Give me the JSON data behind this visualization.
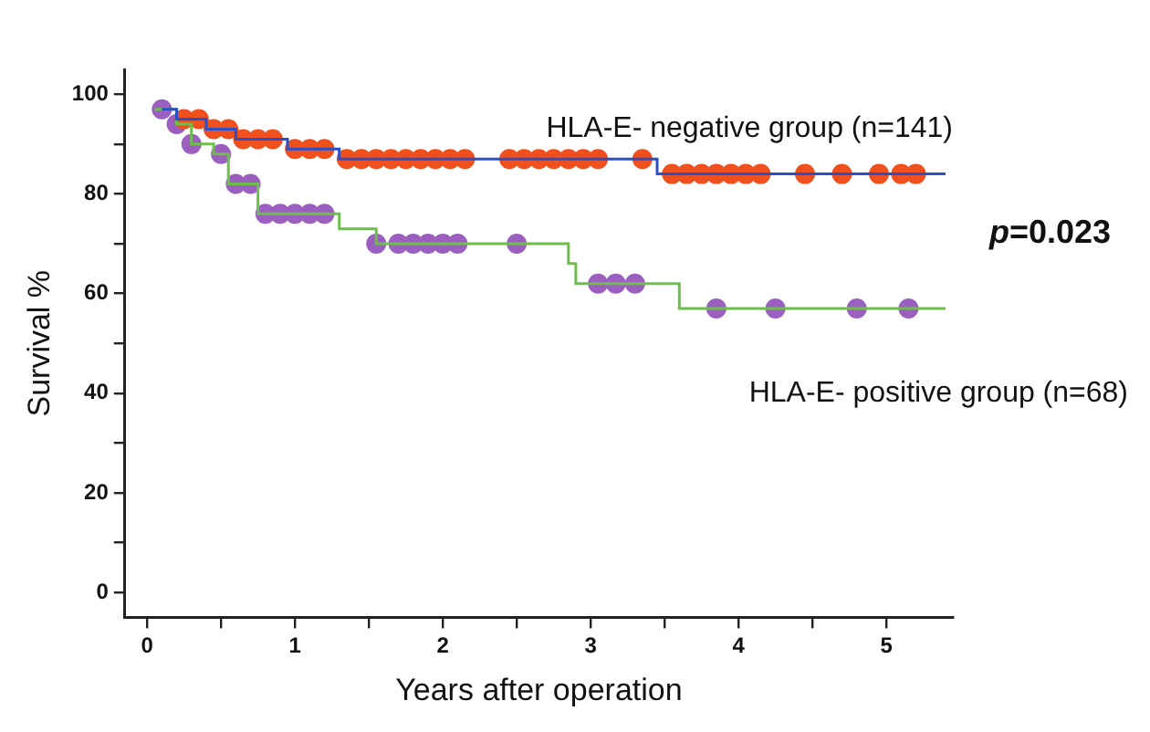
{
  "chart_data": {
    "type": "step",
    "xlabel": "Years after operation",
    "ylabel": "Survival %",
    "annotations": [
      "p=0.023"
    ],
    "xlim": [
      -0.15,
      5.45
    ],
    "ylim": [
      -5,
      105
    ],
    "xticks": [
      0,
      {
        "value": 0.5,
        "label": null
      },
      1,
      {
        "value": 1.5,
        "label": null
      },
      2,
      {
        "value": 2.5,
        "label": null
      },
      3,
      {
        "value": 3.5,
        "label": null
      },
      4,
      {
        "value": 4.5,
        "label": null
      },
      5
    ],
    "yticks": [
      0,
      {
        "value": 10,
        "label": null
      },
      20,
      {
        "value": 30,
        "label": null
      },
      40,
      {
        "value": 50,
        "label": null
      },
      60,
      {
        "value": 70,
        "label": null
      },
      80,
      {
        "value": 90,
        "label": null
      },
      100
    ],
    "grid": false,
    "legend": false,
    "line_style": "solid",
    "series": [
      {
        "name": "HLA-E- negative group (n=141)",
        "type": "step",
        "marker": "none",
        "color": "#2b4fc4",
        "x": [
          0.1,
          0.2,
          0.4,
          0.6,
          0.95,
          1.3,
          3.45,
          5.4
        ],
        "values": [
          97,
          95,
          93,
          91,
          89,
          87,
          84,
          84
        ]
      },
      {
        "type": "scatter",
        "marker": "circle",
        "color": "#f0501e",
        "x": [
          0.25,
          0.35,
          0.45,
          0.55,
          0.65,
          0.75,
          0.85,
          1.0,
          1.1,
          1.2,
          1.35,
          1.45,
          1.55,
          1.65,
          1.75,
          1.85,
          1.95,
          2.05,
          2.15,
          2.45,
          2.55,
          2.65,
          2.75,
          2.85,
          2.95,
          3.05,
          3.35,
          3.55,
          3.65,
          3.75,
          3.85,
          3.95,
          4.05,
          4.15,
          4.45,
          4.7,
          4.95,
          5.1,
          5.2
        ],
        "values": [
          95,
          95,
          93,
          93,
          91,
          91,
          91,
          89,
          89,
          89,
          87,
          87,
          87,
          87,
          87,
          87,
          87,
          87,
          87,
          87,
          87,
          87,
          87,
          87,
          87,
          87,
          87,
          84,
          84,
          84,
          84,
          84,
          84,
          84,
          84,
          84,
          84,
          84,
          84
        ]
      },
      {
        "name": "HLA-E- positive group (n=68)",
        "type": "step",
        "marker": "none",
        "color": "#6cc04a",
        "x": [
          0.05,
          0.2,
          0.3,
          0.45,
          0.55,
          0.75,
          1.3,
          1.55,
          2.85,
          2.9,
          3.6,
          5.4
        ],
        "values": [
          97,
          94,
          90,
          88,
          82,
          76,
          73,
          70,
          66,
          62,
          57,
          57
        ]
      },
      {
        "type": "scatter",
        "marker": "circle",
        "color": "#9b5fc0",
        "x": [
          0.1,
          0.2,
          0.3,
          0.5,
          0.6,
          0.7,
          0.8,
          0.9,
          1.0,
          1.1,
          1.2,
          1.55,
          1.7,
          1.8,
          1.9,
          2.0,
          2.1,
          2.5,
          3.05,
          3.17,
          3.3,
          3.85,
          4.25,
          4.8,
          5.15
        ],
        "values": [
          97,
          94,
          90,
          88,
          82,
          82,
          76,
          76,
          76,
          76,
          76,
          70,
          70,
          70,
          70,
          70,
          70,
          70,
          62,
          62,
          62,
          57,
          57,
          57,
          57
        ]
      }
    ]
  }
}
